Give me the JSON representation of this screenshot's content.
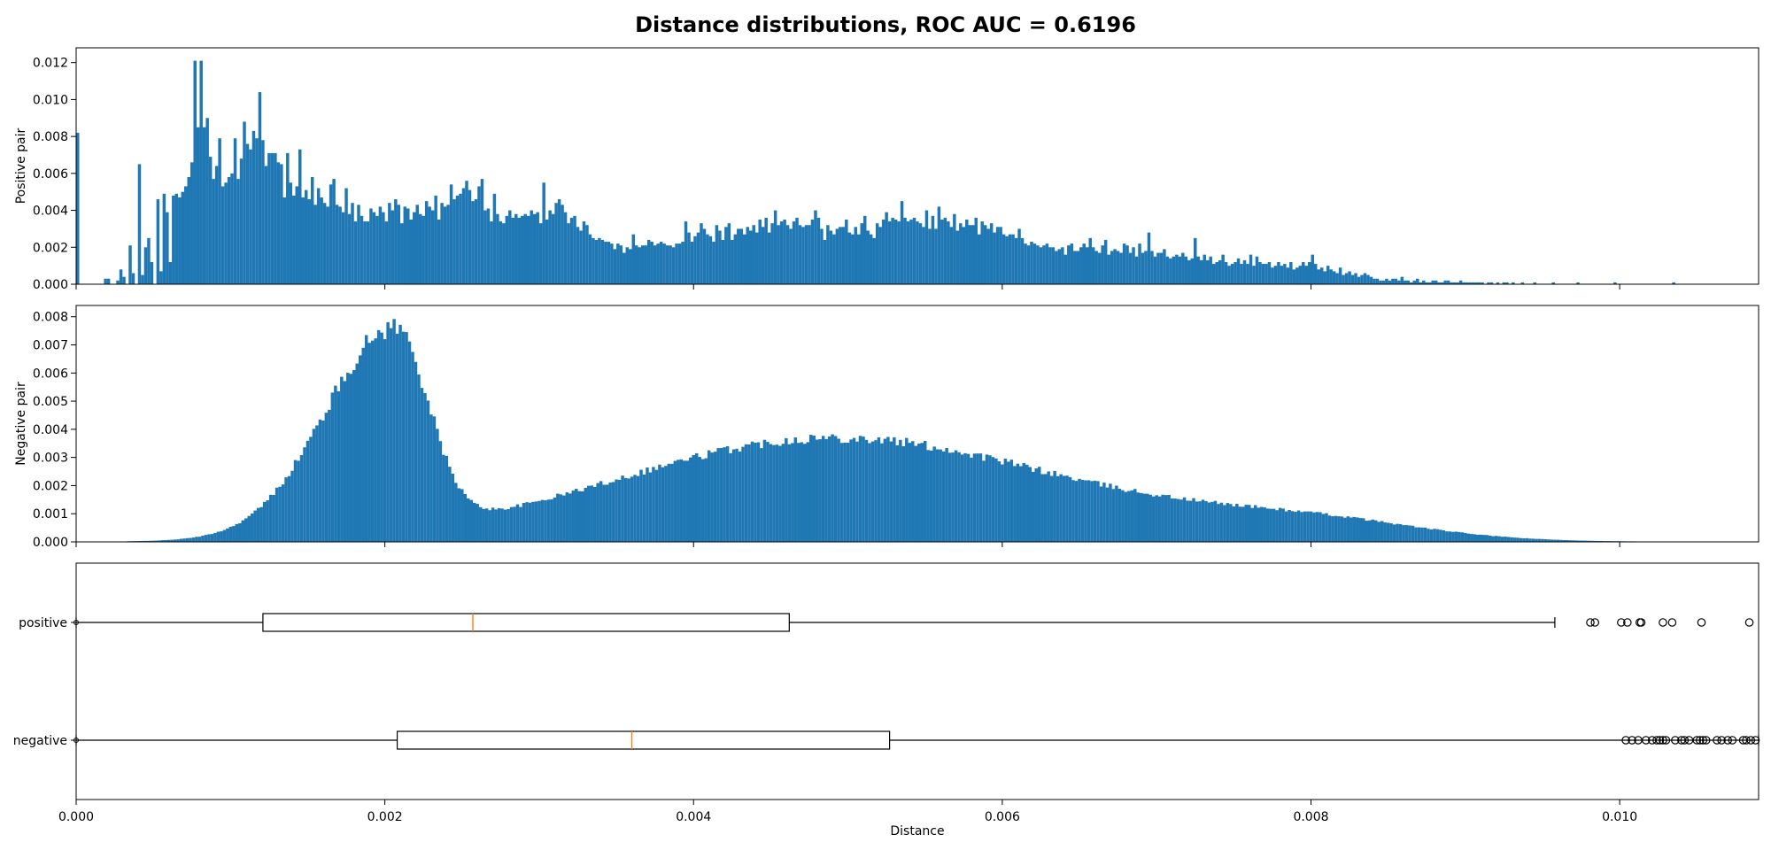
{
  "colors": {
    "hist": "#1f77b4",
    "median": "#ff7f0e",
    "axes": "#000000",
    "box": "#000000"
  },
  "chart_data": [
    {
      "type": "bar",
      "title": "Distance distributions, ROC AUC = 0.6196",
      "ylabel": "Positive pair",
      "xlabel": "",
      "xlim": [
        0.0,
        0.0109
      ],
      "ylim": [
        0,
        0.0128
      ],
      "x_ticks": [
        0.0,
        0.002,
        0.004,
        0.006,
        0.008,
        0.01
      ],
      "x_tick_labels": [
        "",
        "",
        "",
        "",
        "",
        ""
      ],
      "y_ticks": [
        0.0,
        0.002,
        0.004,
        0.006,
        0.008,
        0.01,
        0.012
      ],
      "y_tick_labels": [
        "0.000",
        "0.002",
        "0.004",
        "0.006",
        "0.008",
        "0.010",
        "0.012"
      ],
      "bin_width": 2e-05,
      "bins_start": 0.0,
      "density": [
        0.0082,
        0,
        0,
        0,
        0,
        0,
        0,
        0,
        0,
        0.0003,
        0.0003,
        0,
        0,
        0.0002,
        0.0008,
        0.0004,
        0,
        0.0021,
        0.0006,
        0,
        0.0065,
        0.0005,
        0.002,
        0.0025,
        0.0012,
        0,
        0.0046,
        0.0007,
        0.0049,
        0.0039,
        0.0012,
        0.0048,
        0.0049,
        0.0047,
        0.005,
        0.0053,
        0.0058,
        0.0066,
        0.0121,
        0.0085,
        0.0121,
        0.0085,
        0.009,
        0.0069,
        0.0057,
        0.0064,
        0.0079,
        0.0053,
        0.0055,
        0.0058,
        0.006,
        0.0079,
        0.0057,
        0.0068,
        0.0088,
        0.0076,
        0.0073,
        0.0083,
        0.0079,
        0.0104,
        0.0078,
        0.0064,
        0.0071,
        0.0071,
        0.0071,
        0.0066,
        0.0065,
        0.0047,
        0.0071,
        0.0055,
        0.0048,
        0.0053,
        0.0073,
        0.0047,
        0.0051,
        0.0046,
        0.0058,
        0.0043,
        0.0052,
        0.0047,
        0.0044,
        0.0042,
        0.0054,
        0.0057,
        0.0043,
        0.0042,
        0.0039,
        0.0052,
        0.0038,
        0.0044,
        0.0034,
        0.0043,
        0.0037,
        0.0034,
        0.0034,
        0.0041,
        0.0039,
        0.0037,
        0.0042,
        0.0039,
        0.0034,
        0.0044,
        0.004,
        0.0046,
        0.0043,
        0.0033,
        0.0042,
        0.0041,
        0.0035,
        0.0039,
        0.0043,
        0.0038,
        0.0037,
        0.0045,
        0.0042,
        0.004,
        0.0048,
        0.0035,
        0.0044,
        0.0042,
        0.0043,
        0.0054,
        0.0046,
        0.0048,
        0.0049,
        0.0052,
        0.0056,
        0.0051,
        0.0045,
        0.0046,
        0.0053,
        0.0057,
        0.004,
        0.0041,
        0.0034,
        0.0049,
        0.0038,
        0.0034,
        0.0033,
        0.0037,
        0.004,
        0.0036,
        0.0038,
        0.0036,
        0.0037,
        0.0038,
        0.0037,
        0.004,
        0.0038,
        0.0039,
        0.0033,
        0.0055,
        0.0035,
        0.004,
        0.0038,
        0.0044,
        0.0046,
        0.0043,
        0.0039,
        0.0033,
        0.0036,
        0.0037,
        0.0031,
        0.0029,
        0.0034,
        0.0032,
        0.0027,
        0.0025,
        0.0024,
        0.0025,
        0.0024,
        0.0023,
        0.0023,
        0.0022,
        0.0019,
        0.0022,
        0.0021,
        0.0017,
        0.002,
        0.0019,
        0.0027,
        0.0021,
        0.002,
        0.0021,
        0.0021,
        0.0024,
        0.0023,
        0.0021,
        0.0022,
        0.0023,
        0.0022,
        0.0021,
        0.0021,
        0.002,
        0.0022,
        0.0022,
        0.0023,
        0.0034,
        0.0028,
        0.0023,
        0.0026,
        0.0028,
        0.0033,
        0.003,
        0.0027,
        0.0026,
        0.0023,
        0.0032,
        0.0029,
        0.0024,
        0.0031,
        0.0033,
        0.0024,
        0.0027,
        0.003,
        0.003,
        0.0027,
        0.0031,
        0.0029,
        0.0032,
        0.0028,
        0.0035,
        0.0031,
        0.0036,
        0.0028,
        0.0033,
        0.004,
        0.0032,
        0.0034,
        0.0035,
        0.0032,
        0.003,
        0.0034,
        0.0036,
        0.0032,
        0.0031,
        0.0032,
        0.0032,
        0.0035,
        0.004,
        0.0036,
        0.003,
        0.0024,
        0.0032,
        0.0029,
        0.0027,
        0.003,
        0.0031,
        0.0031,
        0.0035,
        0.0028,
        0.0027,
        0.0031,
        0.0027,
        0.0033,
        0.0037,
        0.0029,
        0.0027,
        0.0025,
        0.0033,
        0.0031,
        0.0035,
        0.0039,
        0.0034,
        0.0036,
        0.0035,
        0.0034,
        0.0045,
        0.0036,
        0.0034,
        0.0035,
        0.0036,
        0.0034,
        0.0033,
        0.0031,
        0.004,
        0.003,
        0.0037,
        0.003,
        0.0042,
        0.0035,
        0.0036,
        0.0034,
        0.0031,
        0.0038,
        0.0029,
        0.0033,
        0.0031,
        0.0035,
        0.0032,
        0.0032,
        0.0036,
        0.0027,
        0.0034,
        0.0032,
        0.003,
        0.0033,
        0.0028,
        0.0031,
        0.0031,
        0.0027,
        0.0026,
        0.0027,
        0.0027,
        0.0025,
        0.003,
        0.0025,
        0.0022,
        0.0021,
        0.0023,
        0.0022,
        0.0021,
        0.002,
        0.0021,
        0.0022,
        0.002,
        0.002,
        0.0018,
        0.0019,
        0.002,
        0.0016,
        0.0021,
        0.0022,
        0.0018,
        0.0018,
        0.002,
        0.0022,
        0.002,
        0.0025,
        0.002,
        0.0018,
        0.0017,
        0.0021,
        0.0024,
        0.0016,
        0.0018,
        0.0019,
        0.0018,
        0.0017,
        0.0022,
        0.0021,
        0.0017,
        0.002,
        0.0015,
        0.0022,
        0.0017,
        0.0018,
        0.0028,
        0.0018,
        0.0015,
        0.0017,
        0.0017,
        0.0019,
        0.0015,
        0.0014,
        0.0015,
        0.0016,
        0.0015,
        0.0017,
        0.0015,
        0.0013,
        0.0014,
        0.0025,
        0.0015,
        0.0013,
        0.0016,
        0.0013,
        0.0015,
        0.0011,
        0.0012,
        0.0013,
        0.0016,
        0.0012,
        0.001,
        0.0011,
        0.0012,
        0.0014,
        0.0011,
        0.0013,
        0.0011,
        0.0016,
        0.001,
        0.0015,
        0.0012,
        0.0011,
        0.0011,
        0.0012,
        0.0009,
        0.001,
        0.0012,
        0.001,
        0.0011,
        0.0009,
        0.0012,
        0.0008,
        0.0009,
        0.001,
        0.0012,
        0.001,
        0.0012,
        0.0016,
        0.0011,
        0.0008,
        0.0009,
        0.0007,
        0.001,
        0.0008,
        0.0007,
        0.0006,
        0.0009,
        0.0005,
        0.0006,
        0.0007,
        0.0005,
        0.0006,
        0.0004,
        0.0005,
        0.0006,
        0.0005,
        0.0004,
        0.0003,
        0.0003,
        0.0002,
        0.0002,
        0.0003,
        0.0002,
        0.0003,
        0.0003,
        0.0002,
        0.0004,
        0.0002,
        0.0002,
        0.0001,
        0.0002,
        0.0003,
        0.0001,
        0.0002,
        0.0001,
        0.0001,
        0.0002,
        0.0002,
        0.0001,
        0.0001,
        0.0002,
        0.0002,
        0.0001,
        0.0001,
        0.0001,
        0.0002,
        0.0001,
        0.0001,
        0.0001,
        0.0001,
        0.0001,
        0.0001,
        0.0001,
        0,
        0.0001,
        0.0001,
        0,
        0.0001,
        0,
        0.0001,
        0.0001,
        0,
        0.0001,
        0,
        0,
        0.0001,
        0,
        0,
        0,
        0.0001,
        0,
        0,
        0,
        0,
        0,
        0.0001,
        0,
        0,
        0,
        0,
        0,
        0,
        0,
        0.0001,
        0,
        0,
        0,
        0,
        0,
        0,
        0,
        0,
        0,
        0,
        0,
        0.0001,
        0,
        0,
        0,
        0,
        0,
        0,
        0,
        0,
        0,
        0,
        0,
        0,
        0,
        0,
        0,
        0,
        0,
        0,
        0.0001,
        0,
        0,
        0,
        0,
        0,
        0,
        0,
        0,
        0,
        0,
        0,
        0,
        0,
        0,
        0,
        0,
        0,
        0,
        0,
        0,
        0,
        0,
        0,
        0,
        0,
        0,
        0,
        0.0001,
        0,
        0,
        0,
        0,
        0,
        0,
        0,
        0,
        0,
        0
      ]
    },
    {
      "type": "bar",
      "ylabel": "Negative pair",
      "xlabel": "",
      "xlim": [
        0.0,
        0.0109
      ],
      "ylim": [
        0,
        0.0084
      ],
      "x_ticks": [
        0.0,
        0.002,
        0.004,
        0.006,
        0.008,
        0.01
      ],
      "x_tick_labels": [
        "",
        "",
        "",
        "",
        "",
        ""
      ],
      "y_ticks": [
        0.0,
        0.001,
        0.002,
        0.003,
        0.004,
        0.005,
        0.006,
        0.007,
        0.008
      ],
      "y_tick_labels": [
        "0.000",
        "0.001",
        "0.002",
        "0.003",
        "0.004",
        "0.005",
        "0.006",
        "0.007",
        "0.008"
      ],
      "model": {
        "type": "gaussian_mixture_density",
        "components": [
          {
            "weight": 0.0072,
            "mean": 0.00205,
            "sd_left": 0.00045,
            "sd_right": 0.00022
          },
          {
            "weight": 0.0037,
            "mean": 0.0049,
            "sd_left": 0.0014,
            "sd_right": 0.0015
          },
          {
            "weight": 0.0006,
            "mean": 0.008,
            "sd_left": 0.0008,
            "sd_right": 0.0007
          }
        ],
        "min_x": 0.00033,
        "bin_width": 2e-05
      }
    },
    {
      "type": "box",
      "xlabel": "Distance",
      "xlim": [
        0.0,
        0.0109
      ],
      "x_ticks": [
        0.0,
        0.002,
        0.004,
        0.006,
        0.008,
        0.01
      ],
      "x_tick_labels": [
        "0.000",
        "0.002",
        "0.004",
        "0.006",
        "0.008",
        "0.010"
      ],
      "categories": [
        "positive",
        "negative"
      ],
      "boxes": [
        {
          "name": "positive",
          "whisker_low": 0.0,
          "q1": 0.00121,
          "median": 0.00257,
          "q3": 0.00462,
          "whisker_high": 0.00958,
          "outliers": [
            0.00981,
            0.00984,
            0.01001,
            0.01005,
            0.01013,
            0.01014,
            0.01028,
            0.01034,
            0.01053,
            0.01084,
            0.01092
          ]
        },
        {
          "name": "negative",
          "whisker_low": 0.0,
          "q1": 0.00208,
          "median": 0.0036,
          "q3": 0.00527,
          "whisker_high": 0.0109,
          "outliers": [
            0.01004,
            0.01008,
            0.01012,
            0.01017,
            0.01021,
            0.01024,
            0.01026,
            0.01028,
            0.0103,
            0.01036,
            0.0104,
            0.01042,
            0.01045,
            0.0105,
            0.01052,
            0.01054,
            0.01056,
            0.01063,
            0.01066,
            0.0107,
            0.01073,
            0.0108,
            0.01082,
            0.01085,
            0.01088
          ]
        }
      ]
    }
  ]
}
